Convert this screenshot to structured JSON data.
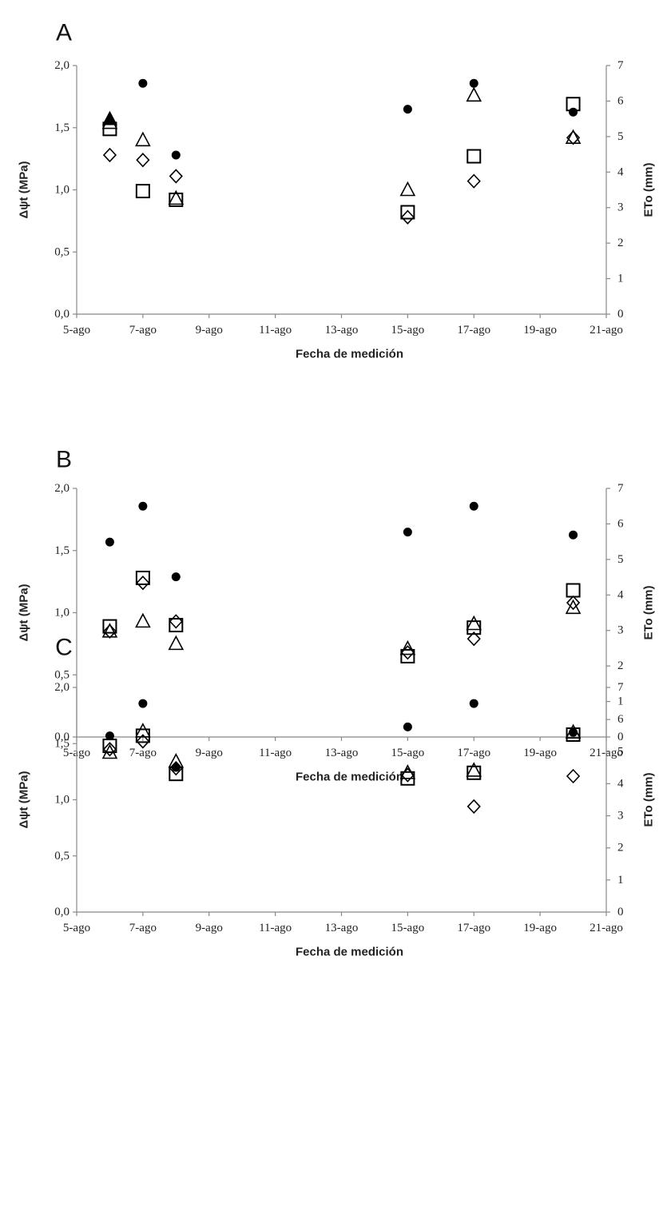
{
  "chart_data": [
    {
      "type": "scatter",
      "panel": "A",
      "xlabel": "Fecha de medición",
      "ylabel": "Δψt (MPa)",
      "y2label": "ETo (mm)",
      "x_ticks": [
        "5-ago",
        "7-ago",
        "9-ago",
        "11-ago",
        "13-ago",
        "15-ago",
        "17-ago",
        "19-ago",
        "21-ago"
      ],
      "y_ticks": [
        "0,0",
        "0,5",
        "1,0",
        "1,5",
        "2,0"
      ],
      "y2_ticks": [
        "0",
        "1",
        "2",
        "3",
        "4",
        "5",
        "6",
        "7"
      ],
      "xlim": [
        5,
        21
      ],
      "ylim": [
        0,
        2
      ],
      "y2lim": [
        0,
        7
      ],
      "series": [
        {
          "marker": "square",
          "axis": "left",
          "points": [
            [
              6,
              1.49
            ],
            [
              7,
              0.99
            ],
            [
              8,
              0.92
            ],
            [
              15,
              0.82
            ],
            [
              17,
              1.27
            ],
            [
              20,
              1.69
            ]
          ]
        },
        {
          "marker": "triangle",
          "axis": "left",
          "points": [
            [
              6,
              1.54
            ],
            [
              7,
              1.4
            ],
            [
              8,
              0.93
            ],
            [
              15,
              1.0
            ],
            [
              17,
              1.76
            ],
            [
              20,
              1.42
            ]
          ]
        },
        {
          "marker": "diamond",
          "axis": "left",
          "points": [
            [
              6,
              1.28
            ],
            [
              7,
              1.24
            ],
            [
              8,
              1.11
            ],
            [
              15,
              0.78
            ],
            [
              17,
              1.07
            ],
            [
              20,
              1.42
            ]
          ]
        },
        {
          "marker": "filled-triangle",
          "axis": "left",
          "points": [
            [
              6,
              1.57
            ]
          ]
        },
        {
          "marker": "dot",
          "axis": "right",
          "points": [
            [
              7,
              6.5
            ],
            [
              8,
              4.48
            ],
            [
              15,
              5.77
            ],
            [
              17,
              6.5
            ],
            [
              20,
              5.69
            ]
          ]
        }
      ]
    },
    {
      "type": "scatter",
      "panel": "B",
      "xlabel": "Fecha de medición",
      "ylabel": "Δψt (MPa)",
      "y2label": "ETo (mm)",
      "x_ticks": [
        "5-ago",
        "7-ago",
        "9-ago",
        "11-ago",
        "13-ago",
        "15-ago",
        "17-ago",
        "19-ago",
        "21-ago"
      ],
      "y_ticks": [
        "0,0",
        "0,5",
        "1,0",
        "1,5",
        "2,0"
      ],
      "y2_ticks": [
        "0",
        "1",
        "2",
        "3",
        "4",
        "5",
        "6",
        "7"
      ],
      "xlim": [
        5,
        21
      ],
      "ylim": [
        0,
        2
      ],
      "y2lim": [
        0,
        7
      ],
      "series": [
        {
          "marker": "square",
          "axis": "left",
          "points": [
            [
              6,
              0.89
            ],
            [
              7,
              1.28
            ],
            [
              8,
              0.9
            ],
            [
              15,
              0.65
            ],
            [
              17,
              0.88
            ],
            [
              20,
              1.18
            ]
          ]
        },
        {
          "marker": "triangle",
          "axis": "left",
          "points": [
            [
              6,
              0.85
            ],
            [
              7,
              0.93
            ],
            [
              8,
              0.75
            ],
            [
              15,
              0.71
            ],
            [
              17,
              0.91
            ],
            [
              20,
              1.04
            ]
          ]
        },
        {
          "marker": "diamond",
          "axis": "left",
          "points": [
            [
              6,
              0.85
            ],
            [
              7,
              1.24
            ],
            [
              8,
              0.93
            ],
            [
              15,
              0.68
            ],
            [
              17,
              0.79
            ],
            [
              20,
              1.08
            ]
          ]
        },
        {
          "marker": "dot",
          "axis": "right",
          "points": [
            [
              6,
              5.49
            ],
            [
              7,
              6.5
            ],
            [
              8,
              4.51
            ],
            [
              15,
              5.77
            ],
            [
              17,
              6.5
            ],
            [
              20,
              5.69
            ]
          ]
        }
      ]
    },
    {
      "type": "scatter",
      "panel": "C",
      "xlabel": "Fecha de medición",
      "ylabel": "Δψt (MPa)",
      "y2label": "ETo (mm)",
      "x_ticks": [
        "5-ago",
        "7-ago",
        "9-ago",
        "11-ago",
        "13-ago",
        "15-ago",
        "17-ago",
        "19-ago",
        "21-ago"
      ],
      "y_ticks": [
        "0,0",
        "0,5",
        "1,0",
        "1,5",
        "2,0"
      ],
      "y2_ticks": [
        "0",
        "1",
        "2",
        "3",
        "4",
        "5",
        "6",
        "7"
      ],
      "xlim": [
        5,
        21
      ],
      "ylim": [
        0,
        2
      ],
      "y2lim": [
        0,
        7
      ],
      "series": [
        {
          "marker": "square",
          "axis": "left",
          "points": [
            [
              6,
              1.48
            ],
            [
              7,
              1.57
            ],
            [
              8,
              1.23
            ],
            [
              15,
              1.19
            ],
            [
              17,
              1.24
            ],
            [
              20,
              1.58
            ]
          ]
        },
        {
          "marker": "triangle",
          "axis": "left",
          "points": [
            [
              6,
              1.42
            ],
            [
              7,
              1.61
            ],
            [
              8,
              1.34
            ],
            [
              15,
              1.24
            ],
            [
              17,
              1.26
            ],
            [
              20,
              1.6
            ]
          ]
        },
        {
          "marker": "diamond",
          "axis": "left",
          "points": [
            [
              6,
              1.45
            ],
            [
              7,
              1.52
            ],
            [
              8,
              1.28
            ],
            [
              15,
              1.22
            ],
            [
              17,
              0.94
            ],
            [
              20,
              1.21
            ]
          ]
        },
        {
          "marker": "dot",
          "axis": "right",
          "points": [
            [
              6,
              5.49
            ],
            [
              7,
              6.5
            ],
            [
              8,
              4.51
            ],
            [
              15,
              5.77
            ],
            [
              17,
              6.5
            ],
            [
              20,
              5.6
            ]
          ]
        }
      ]
    }
  ]
}
